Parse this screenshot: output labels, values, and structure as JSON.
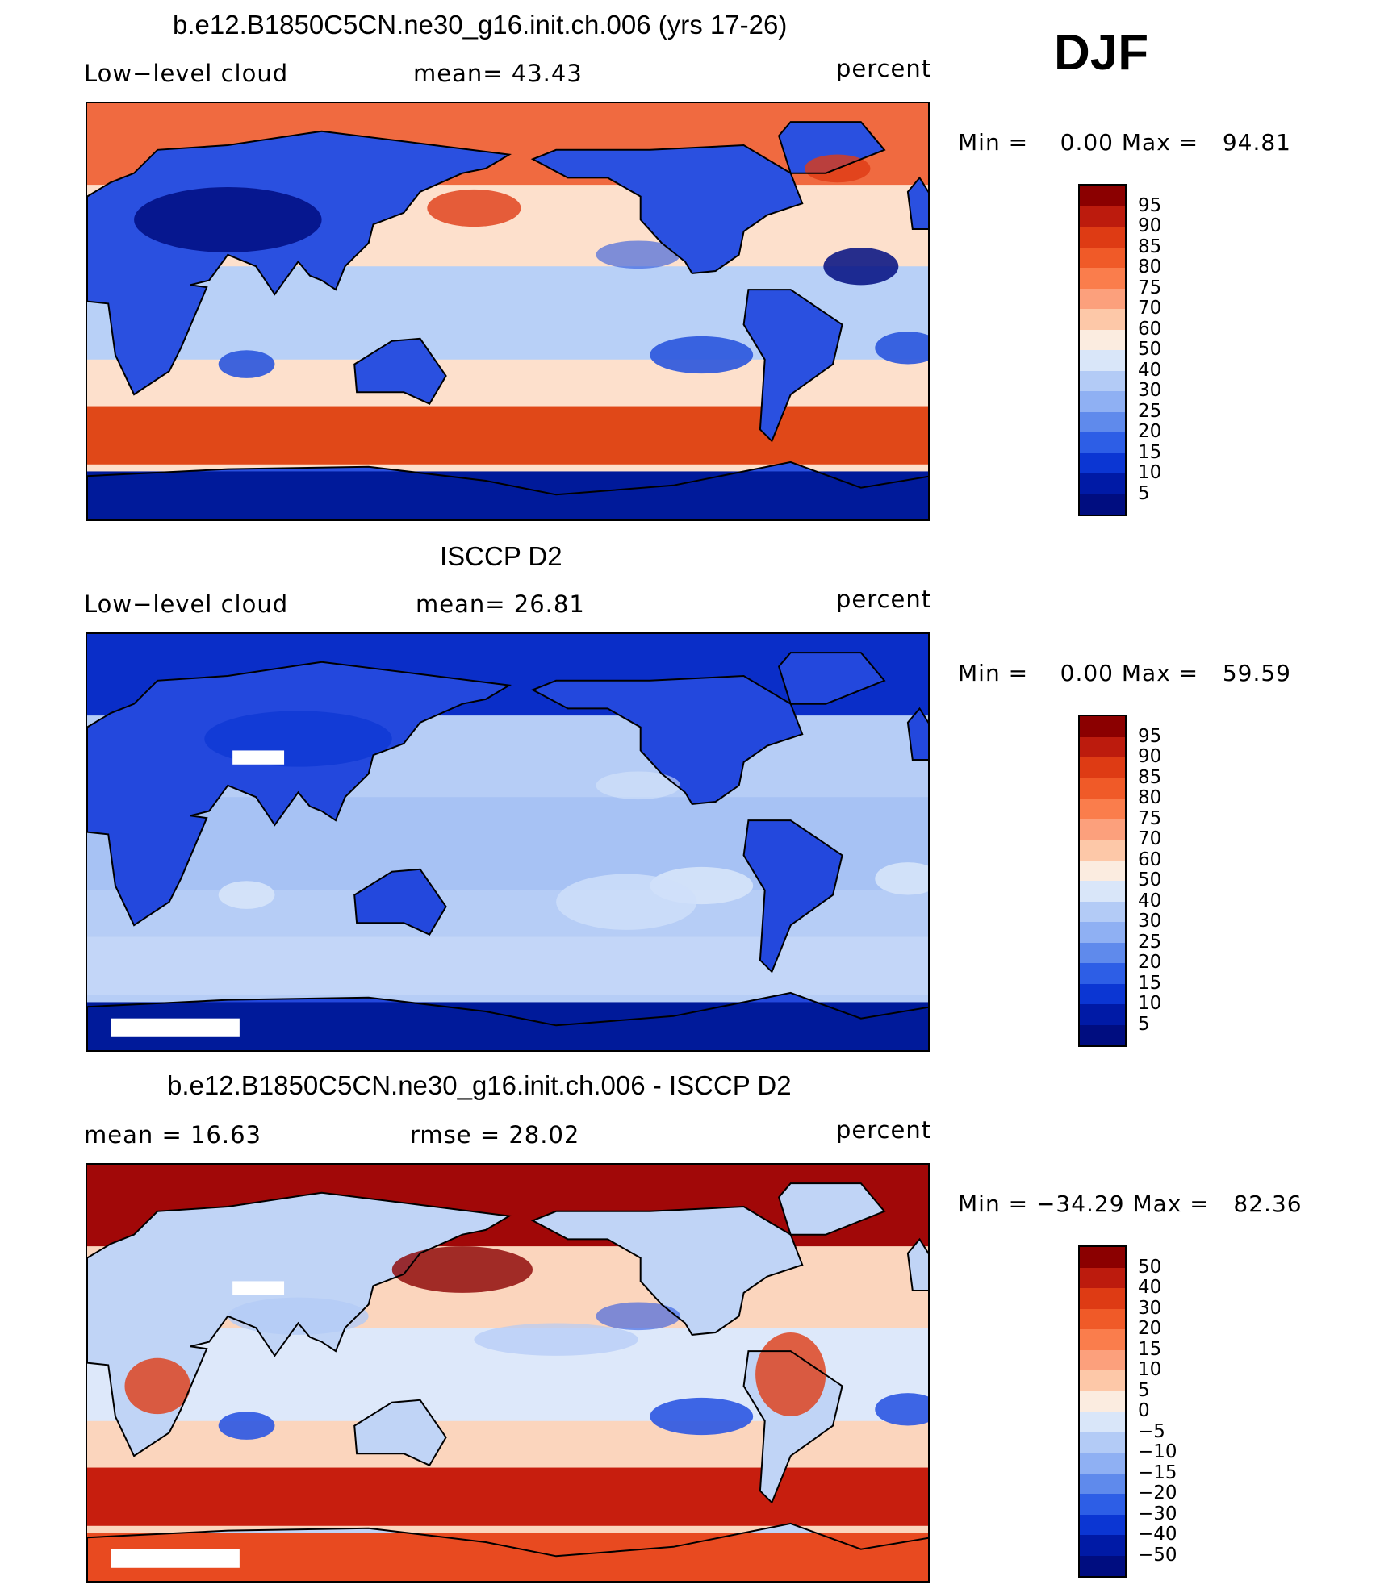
{
  "season": "DJF",
  "panels": [
    {
      "title": "b.e12.B1850C5CN.ne30_g16.init.ch.006 (yrs 17-26)",
      "left_label": "Low−level cloud",
      "center_label": "mean=   43.43",
      "right_label": "percent",
      "minmax": "Min =    0.00 Max =   94.81",
      "colorbar": {
        "labels": [
          "95",
          "90",
          "85",
          "80",
          "75",
          "70",
          "60",
          "50",
          "40",
          "30",
          "25",
          "20",
          "15",
          "10",
          "5"
        ],
        "colors": [
          "#8b0000",
          "#bc1b0d",
          "#de3b14",
          "#f05a28",
          "#fa7d4c",
          "#fca07c",
          "#fdc8a8",
          "#fbece0",
          "#d9e6f9",
          "#b3cbf6",
          "#8fb0f3",
          "#5f8aec",
          "#2d5ee6",
          "#0b36d3",
          "#001aa6",
          "#000d80"
        ]
      },
      "fields": {
        "ocean_base": "#fde0cc",
        "land": "#2a50e0",
        "arctic": "#f06a40",
        "south_ocean": "#e04818",
        "antarctica": "#001a9a",
        "tropics": "#b8d0f7",
        "stratus": "#2a55dd"
      }
    },
    {
      "title": "ISCCP D2",
      "left_label": "Low−level cloud",
      "center_label": "mean=   26.81",
      "right_label": "percent",
      "minmax": "Min =    0.00 Max =   59.59",
      "colorbar": {
        "labels": [
          "95",
          "90",
          "85",
          "80",
          "75",
          "70",
          "60",
          "50",
          "40",
          "30",
          "25",
          "20",
          "15",
          "10",
          "5"
        ],
        "colors": [
          "#8b0000",
          "#bc1b0d",
          "#de3b14",
          "#f05a28",
          "#fa7d4c",
          "#fca07c",
          "#fdc8a8",
          "#fbece0",
          "#d9e6f9",
          "#b3cbf6",
          "#8fb0f3",
          "#5f8aec",
          "#2d5ee6",
          "#0b36d3",
          "#001aa6",
          "#000d80"
        ]
      },
      "fields": {
        "ocean_base": "#b6cdf6",
        "land": "#2348dd",
        "arctic": "#0a2ec8",
        "south_ocean": "#c3d6f8",
        "antarctica": "#001a9a",
        "tropics": "#a7c2f4",
        "stratus": "#d6e4fa"
      }
    },
    {
      "title": "b.e12.B1850C5CN.ne30_g16.init.ch.006 - ISCCP D2",
      "left_label": "mean =   16.63",
      "center_label": "rmse =   28.02",
      "right_label": "percent",
      "minmax": "Min = −34.29 Max =   82.36",
      "colorbar": {
        "labels": [
          "50",
          "40",
          "30",
          "20",
          "15",
          "10",
          "5",
          "0",
          "−5",
          "−10",
          "−15",
          "−20",
          "−30",
          "−40",
          "−50"
        ],
        "colors": [
          "#8b0000",
          "#bc1b0d",
          "#de3b14",
          "#f05a28",
          "#fa7d4c",
          "#fca07c",
          "#fdc8a8",
          "#fbece0",
          "#d9e6f9",
          "#b3cbf6",
          "#8fb0f3",
          "#5f8aec",
          "#2d5ee6",
          "#0b36d3",
          "#001aa6",
          "#000d80"
        ]
      },
      "fields": {
        "ocean_base": "#fbd5bd",
        "land": "#c0d4f6",
        "arctic": "#a10808",
        "south_ocean": "#c71e0e",
        "antarctica": "#e84a20",
        "tropics": "#dde8fa",
        "stratus": "#2b57e2"
      }
    }
  ]
}
